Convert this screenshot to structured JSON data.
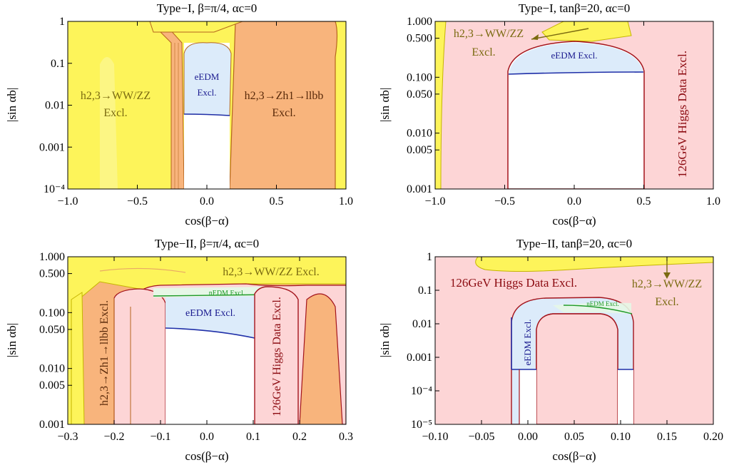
{
  "figure": {
    "colors": {
      "yellow": "#fdf45a",
      "orange": "#f8b47c",
      "pink": "#fdd5d6",
      "blue": "#dcebfa",
      "green": "#e6f7e6",
      "pink_edge": "#a3141c",
      "orange_edge": "#b5651d",
      "blue_edge": "#1f2fa8",
      "green_edge": "#1f9a2a",
      "olive_text": "#7a6a10",
      "brown_text": "#5a2a0a",
      "red_text": "#8b0a10",
      "blue_text": "#1a1a8f"
    }
  },
  "chart_data": [
    {
      "type": "area",
      "title": "Type−I, β=π/4, αc=0",
      "xlabel": "cos(β−α)",
      "ylabel": "|sin αb|",
      "xlim": [
        -1.0,
        1.0
      ],
      "ylim": [
        0.0001,
        1
      ],
      "yscale": "log",
      "xticks": [
        "−1.0",
        "−0.5",
        "0.0",
        "0.5",
        "1.0"
      ],
      "yticks": [
        "10⁻⁴",
        "0.001",
        "0.01",
        "0.1",
        "1"
      ],
      "regions": [
        {
          "label": "h2,3→WW/ZZ Excl.",
          "color": "yellow"
        },
        {
          "label": "h2,3→Zh1→llbb Excl.",
          "color": "orange",
          "x_range": [
            -0.5,
            1.0
          ]
        },
        {
          "label": "eEDM Excl.",
          "color": "blue",
          "x_range": [
            -0.17,
            0.17
          ],
          "y_lower": 0.006
        }
      ],
      "annotations": [
        {
          "name": "wwzz",
          "text": "h2,3→WW/ZZ",
          "sub": "Excl."
        },
        {
          "name": "zh1",
          "text": "h2,3→Zh1→llbb",
          "sub": "Excl."
        },
        {
          "name": "eedm",
          "text": "eEDM",
          "sub": "Excl."
        }
      ]
    },
    {
      "type": "area",
      "title": "Type−I, tanβ=20, αc=0",
      "xlabel": "cos(β−α)",
      "ylabel": "|sin αb|",
      "xlim": [
        -1.0,
        1.0
      ],
      "ylim": [
        0.001,
        1
      ],
      "yscale": "log",
      "xticks": [
        "−1.0",
        "−0.5",
        "0.0",
        "0.5",
        "1.0"
      ],
      "yticks": [
        "0.001",
        "0.005",
        "0.010",
        "0.050",
        "0.100",
        "0.500",
        "1.000"
      ],
      "regions": [
        {
          "label": "126GeV Higgs Data Excl.",
          "color": "pink",
          "allowed_x_range": [
            -0.5,
            0.5
          ]
        },
        {
          "label": "h2,3→WW/ZZ Excl.",
          "color": "yellow"
        },
        {
          "label": "eEDM Excl.",
          "color": "blue",
          "y_lower": 0.11
        }
      ],
      "annotations": [
        {
          "name": "wwzz",
          "text": "h2,3→WW/ZZ",
          "sub": "Excl."
        },
        {
          "name": "eedm",
          "text": "eEDM Excl."
        },
        {
          "name": "higgs",
          "text": "126GeV Higgs Data Excl."
        }
      ]
    },
    {
      "type": "area",
      "title": "Type−II, β=π/4, αc=0",
      "xlabel": "cos(β−α)",
      "ylabel": "|sin αb|",
      "xlim": [
        -0.3,
        0.3
      ],
      "ylim": [
        0.001,
        1
      ],
      "yscale": "log",
      "xticks": [
        "−0.3",
        "−0.2",
        "−0.1",
        "0.0",
        "0.1",
        "0.2",
        "0.3"
      ],
      "yticks": [
        "0.001",
        "0.005",
        "0.010",
        "0.050",
        "0.100",
        "0.500",
        "1.000"
      ],
      "regions": [
        {
          "label": "h2,3→WW/ZZ Excl.",
          "color": "yellow"
        },
        {
          "label": "h2,3→Zh1→llbb Excl.",
          "color": "orange"
        },
        {
          "label": "126GeV Higgs Data Excl.",
          "color": "pink",
          "x_range": [
            0.1,
            0.2
          ]
        },
        {
          "label": "eEDM Excl.",
          "color": "blue",
          "y_lower": 0.035
        },
        {
          "label": "nEDM Excl.",
          "color": "green",
          "y_lower": 0.2
        }
      ],
      "annotations": [
        {
          "name": "wwzz",
          "text": "h2,3→WW/ZZ Excl."
        },
        {
          "name": "nedm",
          "text": "nEDM Excl."
        },
        {
          "name": "eedm",
          "text": "eEDM Excl."
        },
        {
          "name": "zh1",
          "text": "h2,3→Zh1→llbb Excl."
        },
        {
          "name": "higgs",
          "text": "126GeV Higgs Data Excl."
        }
      ]
    },
    {
      "type": "area",
      "title": "Type−II, tanβ=20, αc=0",
      "xlabel": "cos(β−α)",
      "ylabel": "|sin αb|",
      "xlim": [
        -0.1,
        0.2
      ],
      "ylim": [
        1e-05,
        1
      ],
      "yscale": "log",
      "xticks": [
        "−0.10",
        "−0.05",
        "0.00",
        "0.05",
        "0.10",
        "0.15",
        "0.20"
      ],
      "yticks": [
        "10⁻⁵",
        "10⁻⁴",
        "0.001",
        "0.01",
        "0.1",
        "1"
      ],
      "regions": [
        {
          "label": "126GeV Higgs Data Excl.",
          "color": "pink"
        },
        {
          "label": "h2,3→WW/ZZ Excl.",
          "color": "yellow"
        },
        {
          "label": "eEDM Excl.",
          "color": "blue",
          "y_lower": 0.00045
        },
        {
          "label": "nEDM Excl.",
          "color": "green",
          "y_lower": 0.02
        }
      ],
      "annotations": [
        {
          "name": "higgs",
          "text": "126GeV Higgs Data Excl."
        },
        {
          "name": "wwzz",
          "text": "h2,3→WW/ZZ",
          "sub": "Excl."
        },
        {
          "name": "nedm",
          "text": "nEDM Excl."
        },
        {
          "name": "eedm",
          "text": "eEDM Excl."
        }
      ]
    }
  ]
}
